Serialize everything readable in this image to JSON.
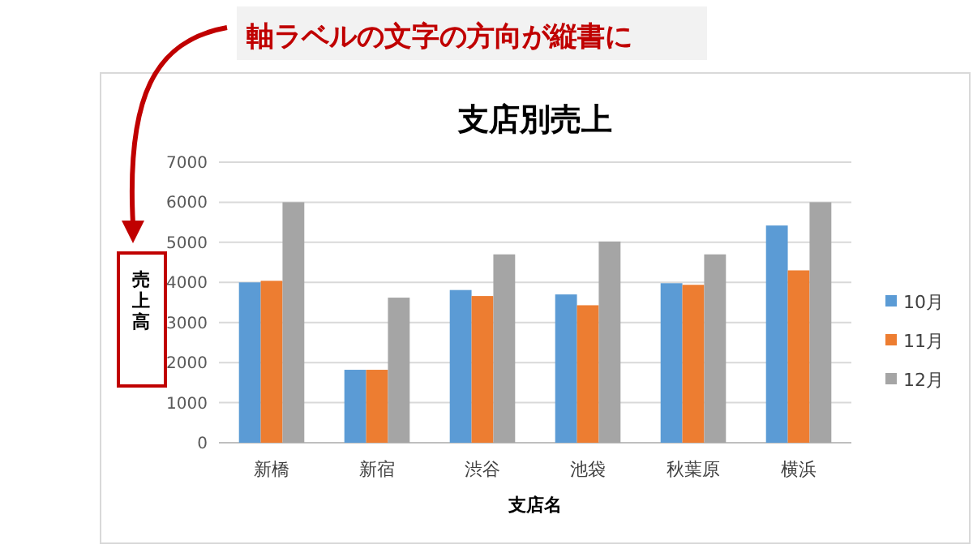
{
  "chart_data": {
    "type": "bar",
    "title": "支店別売上",
    "xlabel": "支店名",
    "ylabel": "売上高",
    "categories": [
      "新橋",
      "新宿",
      "渋谷",
      "池袋",
      "秋葉原",
      "横浜"
    ],
    "series": [
      {
        "name": "10月",
        "color": "#5b9bd5",
        "values": [
          4000,
          1820,
          3810,
          3700,
          3980,
          5420
        ]
      },
      {
        "name": "11月",
        "color": "#ed7d31",
        "values": [
          4040,
          1820,
          3660,
          3430,
          3940,
          4300
        ]
      },
      {
        "name": "12月",
        "color": "#a5a5a5",
        "values": [
          6000,
          3620,
          4700,
          5020,
          4700,
          6000
        ]
      }
    ],
    "ylim": [
      0,
      7000
    ],
    "yticks": [
      0,
      1000,
      2000,
      3000,
      4000,
      5000,
      6000,
      7000
    ],
    "grid": "y",
    "legend": "right",
    "annotations": [
      "軸ラベルの文字の方向が縦書に"
    ]
  }
}
